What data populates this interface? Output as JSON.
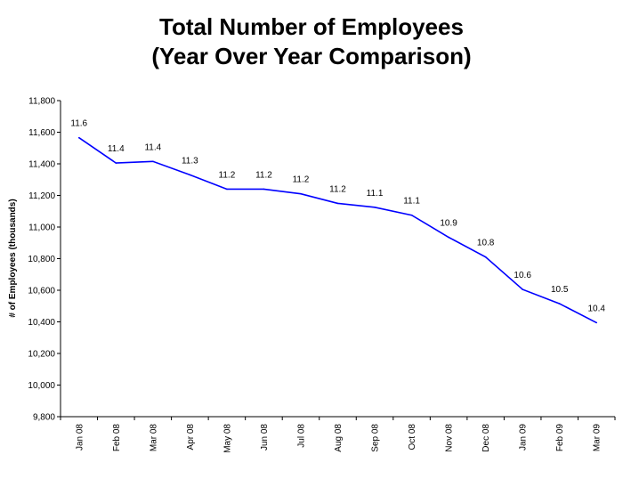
{
  "chart_data": {
    "type": "line",
    "title_line1": "Total Number of Employees",
    "title_line2": "(Year Over Year Comparison)",
    "ylabel": "# of Employees  (thousands)",
    "xlabel": "",
    "ylim": [
      9800,
      11800
    ],
    "ytick_step": 200,
    "categories": [
      "Jan 08",
      "Feb 08",
      "Mar 08",
      "Apr 08",
      "May 08",
      "Jun 08",
      "Jul 08",
      "Aug 08",
      "Sep 08",
      "Oct 08",
      "Nov 08",
      "Dec 08",
      "Jan 09",
      "Feb 09",
      "Mar 09"
    ],
    "values": [
      11565,
      11405,
      11415,
      11330,
      11240,
      11240,
      11210,
      11150,
      11125,
      11075,
      10935,
      10810,
      10605,
      10515,
      10395
    ],
    "data_labels": [
      "11.6",
      "11.4",
      "11.4",
      "11.3",
      "11.2",
      "11.2",
      "11.2",
      "11.2",
      "11.1",
      "11.1",
      "10.9",
      "10.8",
      "10.6",
      "10.5",
      "10.4"
    ],
    "line_color": "#0000ff",
    "grid": false,
    "legend": "none"
  }
}
